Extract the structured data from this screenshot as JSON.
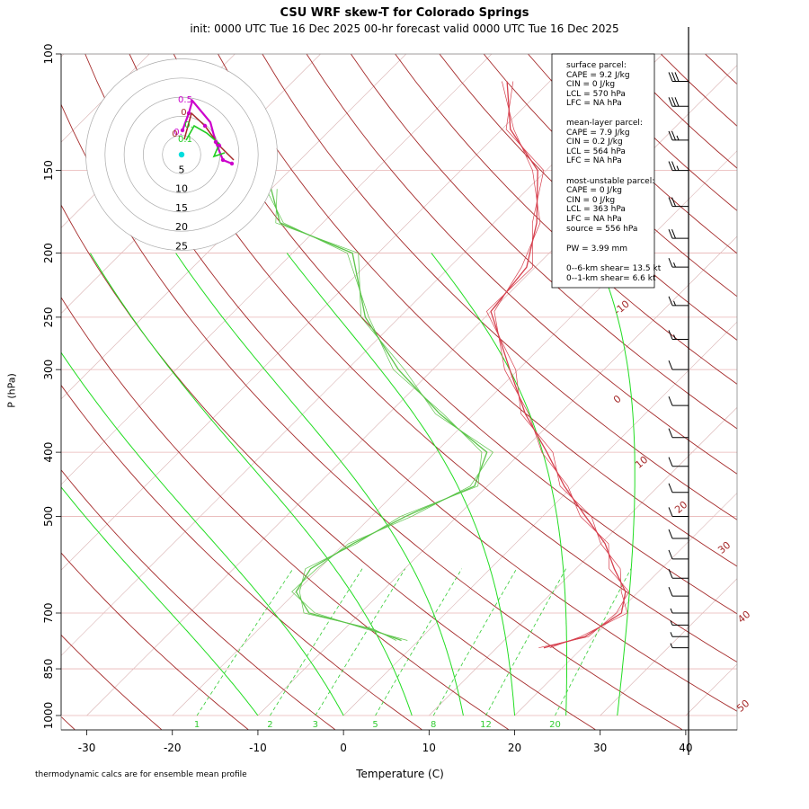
{
  "title": "CSU WRF skew-T for Colorado Springs",
  "subtitle": "init: 0000 UTC Tue 16 Dec 2025     00-hr forecast valid 0000 UTC Tue 16 Dec 2025",
  "footnote": "thermodynamic calcs are for ensemble mean profile",
  "colors": {
    "temperature": "#d6404e",
    "dewpoint": "#5cc44a",
    "mixing_ratio": "#33cc33",
    "moist_adiabat": "#22dd22",
    "dry_adiabat": "#a52a2a",
    "isotherm_label": "#a52a2a",
    "hodo_purple": "#cc00cc",
    "hodo_red": "#a52a2a",
    "hodo_green": "#22cc22",
    "hodo_cyan": "#00dddd"
  },
  "chart_data": {
    "type": "line",
    "title": "CSU WRF skew-T for Colorado Springs",
    "xlabel": "Temperature (C)",
    "ylabel": "P (hPa)",
    "xlim": [
      -33,
      46
    ],
    "ylim": [
      1000,
      100
    ],
    "y_scale": "log",
    "skew_degrees": 45,
    "x_ticks": [
      -30,
      -20,
      -10,
      0,
      10,
      20,
      30,
      40
    ],
    "y_ticks": [
      100,
      150,
      200,
      250,
      300,
      400,
      500,
      700,
      850,
      1000
    ],
    "isotherm_labels": [
      -10,
      0,
      10,
      20,
      30,
      40,
      50
    ],
    "mixing_ratio_labels": [
      "1",
      "2",
      "3",
      "5",
      "8",
      "12",
      "20"
    ],
    "series": [
      {
        "name": "",
        "kind": "temperature",
        "points": [
          {
            "p": 790,
            "t": 15.5
          },
          {
            "p": 760,
            "t": 19.0
          },
          {
            "p": 700,
            "t": 20.5
          },
          {
            "p": 650,
            "t": 18.5
          },
          {
            "p": 600,
            "t": 14.5
          },
          {
            "p": 550,
            "t": 10.5
          },
          {
            "p": 500,
            "t": 5.0
          },
          {
            "p": 450,
            "t": -1.0
          },
          {
            "p": 400,
            "t": -7.0
          },
          {
            "p": 350,
            "t": -14.0
          },
          {
            "p": 300,
            "t": -21.0
          },
          {
            "p": 245,
            "t": -30.0
          },
          {
            "p": 210,
            "t": -31.0
          },
          {
            "p": 180,
            "t": -35.0
          },
          {
            "p": 150,
            "t": -41.0
          },
          {
            "p": 130,
            "t": -49.0
          },
          {
            "p": 110,
            "t": -55.0
          }
        ]
      },
      {
        "name": "",
        "kind": "dewpoint",
        "points": [
          {
            "p": 770,
            "t": -2.0
          },
          {
            "p": 740,
            "t": -7.0
          },
          {
            "p": 700,
            "t": -16.0
          },
          {
            "p": 650,
            "t": -20.0
          },
          {
            "p": 600,
            "t": -21.0
          },
          {
            "p": 550,
            "t": -19.0
          },
          {
            "p": 500,
            "t": -16.0
          },
          {
            "p": 450,
            "t": -11.5
          },
          {
            "p": 400,
            "t": -14.0
          },
          {
            "p": 350,
            "t": -24.0
          },
          {
            "p": 300,
            "t": -34.0
          },
          {
            "p": 250,
            "t": -44.0
          },
          {
            "p": 200,
            "t": -53.0
          },
          {
            "p": 180,
            "t": -65.0
          },
          {
            "p": 160,
            "t": -70.0
          }
        ]
      }
    ],
    "hodograph": {
      "ring_labels": [
        "5",
        "10",
        "15",
        "20",
        "25"
      ],
      "height_labels": [
        "0.5",
        "0.",
        "0.",
        "0.",
        "0.",
        "0.1"
      ]
    },
    "wind_barbs_kt": [
      {
        "p": 110,
        "speed": 30
      },
      {
        "p": 120,
        "speed": 30
      },
      {
        "p": 135,
        "speed": 25
      },
      {
        "p": 150,
        "speed": 25
      },
      {
        "p": 170,
        "speed": 20
      },
      {
        "p": 190,
        "speed": 20
      },
      {
        "p": 210,
        "speed": 15
      },
      {
        "p": 240,
        "speed": 15
      },
      {
        "p": 270,
        "speed": 15
      },
      {
        "p": 300,
        "speed": 10
      },
      {
        "p": 340,
        "speed": 10
      },
      {
        "p": 380,
        "speed": 10
      },
      {
        "p": 420,
        "speed": 10
      },
      {
        "p": 460,
        "speed": 10
      },
      {
        "p": 500,
        "speed": 10
      },
      {
        "p": 540,
        "speed": 10
      },
      {
        "p": 580,
        "speed": 10
      },
      {
        "p": 620,
        "speed": 10
      },
      {
        "p": 660,
        "speed": 10
      },
      {
        "p": 700,
        "speed": 5
      },
      {
        "p": 730,
        "speed": 5
      },
      {
        "p": 760,
        "speed": 5
      },
      {
        "p": 790,
        "speed": 5
      }
    ]
  },
  "info_box": {
    "surface_title": "surface parcel:",
    "surface_cape": "CAPE = 9.2 J/kg",
    "surface_cin": "CIN = 0 J/kg",
    "surface_lcl": "LCL = 570 hPa",
    "surface_lfc": "LFC = NA hPa",
    "mixed_title": "mean-layer parcel:",
    "mixed_cape": "CAPE = 7.9 J/kg",
    "mixed_cin": "CIN = 0.2 J/kg",
    "mixed_lcl": "LCL = 564 hPa",
    "mixed_lfc": "LFC = NA hPa",
    "mu_title": "most-unstable parcel:",
    "mu_cape": "CAPE = 0 J/kg",
    "mu_cin": "CIN = 0 J/kg",
    "mu_lcl": "LCL = 363 hPa",
    "mu_lfc": "LFC = NA hPa",
    "mu_source": "source = 556 hPa",
    "pw": "PW =  3.99 mm",
    "shear6": "0--6-km shear= 13.5 kt",
    "shear1": "0--1-km shear= 6.6 kt"
  }
}
